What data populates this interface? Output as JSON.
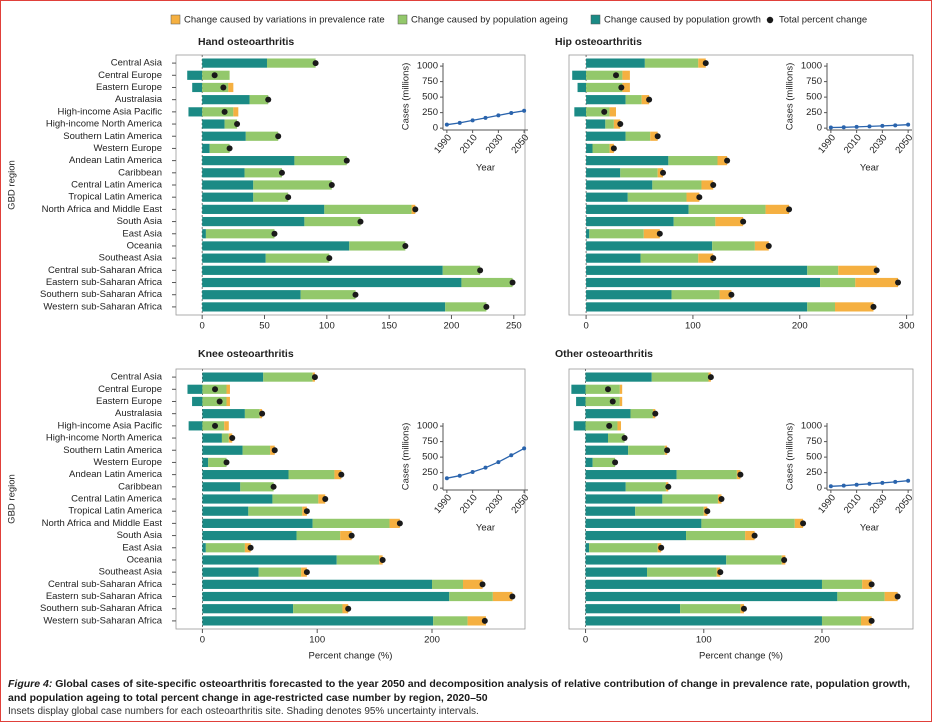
{
  "chart_data": [
    {
      "type": "bar",
      "orientation": "horizontal",
      "stacked": true,
      "title": "Hand osteoarthritis",
      "ylabel": "GBD region",
      "categories": [
        "Central Asia",
        "Central Europe",
        "Eastern Europe",
        "Australasia",
        "High-income Asia Pacific",
        "High-income North America",
        "Southern Latin America",
        "Western Europe",
        "Andean Latin America",
        "Caribbean",
        "Central Latin America",
        "Tropical Latin America",
        "North Africa and Middle East",
        "South Asia",
        "East Asia",
        "Oceania",
        "Southeast Asia",
        "Central sub-Saharan Africa",
        "Eastern sub-Saharan Africa",
        "Southern sub-Saharan Africa",
        "Western sub-Saharan Africa"
      ],
      "series": [
        {
          "name": "Change caused by variations in prevalence rate",
          "color": "#f5b041",
          "values": [
            0,
            0,
            4,
            0,
            4,
            0,
            0,
            0,
            0,
            0,
            0,
            0,
            3,
            0,
            0,
            0,
            0,
            0,
            0,
            0,
            0
          ]
        },
        {
          "name": "Change caused by population ageing",
          "color": "#93c86b",
          "values": [
            39,
            22,
            21,
            15,
            25,
            10,
            26,
            16,
            42,
            30,
            63,
            28,
            70,
            45,
            55,
            45,
            51,
            30,
            41,
            44,
            33
          ]
        },
        {
          "name": "Change caused by population growth",
          "color": "#1b8a85",
          "values": [
            52,
            -12,
            -8,
            38,
            -11,
            18,
            35,
            6,
            74,
            34,
            41,
            41,
            98,
            82,
            3,
            118,
            51,
            193,
            208,
            79,
            195
          ]
        },
        {
          "name": "Total percent change",
          "type": "scatter",
          "color": "#1a1a1a",
          "values": [
            91,
            10,
            17,
            53,
            18,
            28,
            61,
            22,
            116,
            64,
            104,
            69,
            171,
            127,
            58,
            163,
            102,
            223,
            249,
            123,
            228
          ]
        }
      ],
      "xlim": [
        -21,
        259
      ],
      "xticks": [
        0,
        50,
        100,
        150,
        200,
        250
      ]
    },
    {
      "type": "bar",
      "orientation": "horizontal",
      "stacked": true,
      "title": "Hip osteoarthritis",
      "series": [
        {
          "color": "#f5b041",
          "values": [
            7,
            7,
            7,
            7,
            6,
            6,
            7,
            4,
            9,
            5,
            11,
            12,
            22,
            26,
            15,
            13,
            14,
            36,
            40,
            11,
            36
          ]
        },
        {
          "color": "#93c86b",
          "values": [
            50,
            34,
            34,
            15,
            22,
            8,
            23,
            16,
            46,
            35,
            46,
            55,
            72,
            39,
            51,
            40,
            54,
            29,
            33,
            45,
            26
          ]
        },
        {
          "color": "#1b8a85",
          "values": [
            55,
            -13,
            -8,
            37,
            -11,
            18,
            37,
            6,
            77,
            32,
            62,
            39,
            96,
            82,
            3,
            118,
            51,
            207,
            219,
            80,
            207
          ]
        },
        {
          "type": "scatter",
          "color": "#1a1a1a",
          "values": [
            112,
            28,
            33,
            59,
            17,
            32,
            67,
            26,
            132,
            72,
            119,
            106,
            190,
            147,
            69,
            171,
            119,
            272,
            292,
            136,
            269
          ]
        }
      ],
      "xlim": [
        -16,
        306
      ],
      "xticks": [
        0,
        100,
        200,
        300
      ]
    },
    {
      "type": "bar",
      "orientation": "horizontal",
      "stacked": true,
      "title": "Knee osteoarthritis",
      "ylabel": "GBD region",
      "xlabel": "Percent change (%)",
      "categories": [
        "Central Asia",
        "Central Europe",
        "Eastern Europe",
        "Australasia",
        "High-income Asia Pacific",
        "High-income North America",
        "Southern Latin America",
        "Western Europe",
        "Andean Latin America",
        "Caribbean",
        "Central Latin America",
        "Tropical Latin America",
        "North Africa and Middle East",
        "South Asia",
        "East Asia",
        "Oceania",
        "Southeast Asia",
        "Central sub-Saharan Africa",
        "Eastern sub-Saharan Africa",
        "Southern sub-Saharan Africa",
        "Western sub-Saharan Africa"
      ],
      "series": [
        {
          "color": "#f5b041",
          "values": [
            2,
            3,
            3,
            2,
            4,
            3,
            4,
            0,
            6,
            0,
            6,
            4,
            9,
            10,
            5,
            3,
            5,
            17,
            17,
            5,
            16
          ]
        },
        {
          "color": "#93c86b",
          "values": [
            43,
            21,
            21,
            13,
            19,
            6,
            24,
            16,
            40,
            29,
            40,
            47,
            67,
            38,
            34,
            37,
            37,
            27,
            38,
            43,
            30
          ]
        },
        {
          "color": "#1b8a85",
          "values": [
            53,
            -13,
            -9,
            37,
            -12,
            17,
            35,
            5,
            75,
            33,
            61,
            40,
            96,
            82,
            3,
            117,
            49,
            200,
            215,
            79,
            201
          ]
        },
        {
          "type": "scatter",
          "color": "#1a1a1a",
          "values": [
            98,
            11,
            15,
            52,
            11,
            26,
            63,
            21,
            121,
            62,
            107,
            91,
            172,
            130,
            42,
            157,
            91,
            244,
            270,
            127,
            246
          ]
        }
      ],
      "xlim": [
        -23,
        281
      ],
      "xticks": [
        0,
        100,
        200
      ]
    },
    {
      "type": "bar",
      "orientation": "horizontal",
      "stacked": true,
      "title": "Other osteoarthritis",
      "xlabel": "Percent change (%)",
      "series": [
        {
          "color": "#f5b041",
          "values": [
            2,
            2,
            2,
            2,
            3,
            0,
            2,
            0,
            3,
            2,
            3,
            3,
            7,
            8,
            3,
            3,
            3,
            8,
            11,
            3,
            9
          ]
        },
        {
          "color": "#93c86b",
          "values": [
            48,
            29,
            29,
            19,
            27,
            14,
            31,
            19,
            51,
            34,
            47,
            58,
            79,
            50,
            58,
            47,
            59,
            34,
            40,
            51,
            33
          ]
        },
        {
          "color": "#1b8a85",
          "values": [
            56,
            -12,
            -8,
            38,
            -10,
            19,
            36,
            6,
            77,
            34,
            65,
            42,
            98,
            85,
            3,
            119,
            52,
            200,
            213,
            80,
            200
          ]
        },
        {
          "type": "scatter",
          "color": "#1a1a1a",
          "values": [
            106,
            19,
            23,
            59,
            20,
            33,
            69,
            25,
            131,
            70,
            115,
            103,
            184,
            143,
            64,
            168,
            114,
            242,
            264,
            134,
            242
          ]
        }
      ],
      "xlim": [
        -14,
        277
      ],
      "xticks": [
        0,
        100,
        200
      ]
    },
    {
      "type": "line",
      "xlabel": "Year",
      "ylabel": "Cases (millions)",
      "x": [
        1990,
        2000,
        2010,
        2020,
        2030,
        2040,
        2050
      ],
      "series": [
        {
          "color": "#2a64ad",
          "values": [
            56,
            85,
            125,
            165,
            205,
            245,
            280
          ]
        }
      ],
      "xlim": [
        1987,
        2053
      ],
      "ylim": [
        -30,
        1050
      ],
      "xticks": [
        1990,
        2010,
        2030,
        2050
      ],
      "yticks": [
        0,
        250,
        500,
        750,
        1000
      ]
    },
    {
      "type": "line",
      "xlabel": "Year",
      "ylabel": "Cases (millions)",
      "x": [
        1990,
        2000,
        2010,
        2020,
        2030,
        2040,
        2050
      ],
      "series": [
        {
          "color": "#2a64ad",
          "values": [
            10,
            14,
            20,
            28,
            36,
            45,
            56
          ]
        }
      ],
      "xlim": [
        1987,
        2053
      ],
      "ylim": [
        -30,
        1050
      ],
      "xticks": [
        1990,
        2010,
        2030,
        2050
      ],
      "yticks": [
        0,
        250,
        500,
        750,
        1000
      ]
    },
    {
      "type": "line",
      "xlabel": "Year",
      "ylabel": "Cases (millions)",
      "x": [
        1990,
        2000,
        2010,
        2020,
        2030,
        2040,
        2050
      ],
      "series": [
        {
          "color": "#2a64ad",
          "values": [
            160,
            200,
            260,
            330,
            420,
            530,
            640
          ]
        }
      ],
      "xlim": [
        1987,
        2053
      ],
      "ylim": [
        -30,
        1050
      ],
      "xticks": [
        1990,
        2010,
        2030,
        2050
      ],
      "yticks": [
        0,
        250,
        500,
        750,
        1000
      ]
    },
    {
      "type": "line",
      "xlabel": "Year",
      "ylabel": "Cases (millions)",
      "x": [
        1990,
        2000,
        2010,
        2020,
        2030,
        2040,
        2050
      ],
      "series": [
        {
          "color": "#2a64ad",
          "values": [
            30,
            40,
            55,
            70,
            85,
            100,
            120
          ]
        }
      ],
      "xlim": [
        1987,
        2053
      ],
      "ylim": [
        -30,
        1050
      ],
      "xticks": [
        1990,
        2010,
        2030,
        2050
      ],
      "yticks": [
        0,
        250,
        500,
        750,
        1000
      ]
    }
  ],
  "caption": {
    "label": "Figure 4:",
    "title": "Global cases of site-specific osteoarthritis forecasted to the year 2050 and decomposition analysis of relative contribution of change in prevalence rate, population growth, and population ageing to total percent change in age-restricted case number by region, 2020–50",
    "note": "Insets display global case numbers for each osteoarthritis site. Shading denotes 95% uncertainty intervals."
  }
}
